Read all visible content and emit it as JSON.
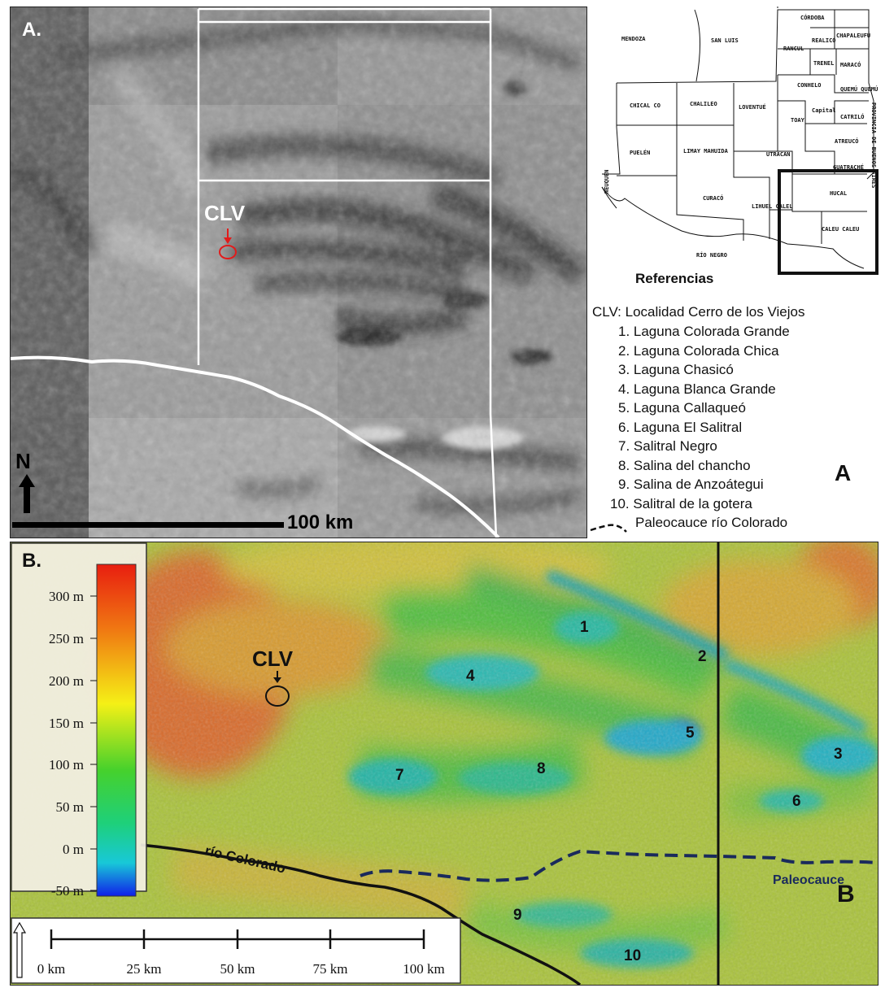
{
  "panel_a": {
    "label": "A.",
    "site_label": "CLV",
    "north_label": "N",
    "scale_label": "100 km"
  },
  "reference_map": {
    "departments": [
      "CÓRDOBA",
      "MENDOZA",
      "SAN LUIS",
      "REALICÓ",
      "CHAPALEUFÚ",
      "RANCUL",
      "TRENEL",
      "MARACÓ",
      "CONHELO",
      "QUEMÚ QUEMÚ",
      "CHICAL CO",
      "CHALILEO",
      "LOVENTUÉ",
      "TOAY",
      "Capital",
      "CATRILÓ",
      "PROVINCIA DE BUENOS AIRES",
      "PUELÉN",
      "LIMAY MAHUIDA",
      "UTRACÁN",
      "ATREUCÓ",
      "GUATRACHÉ",
      "NEUQUÉN",
      "CURACÓ",
      "LIHUEL CALEL",
      "HUCAL",
      "CALEU CALEU",
      "RÍO NEGRO"
    ],
    "legend_title": "Referencias",
    "clv_line": "CLV: Localidad Cerro de los Viejos",
    "lakes": [
      "1. Laguna Colorada Grande",
      "2. Laguna Colorada Chica",
      "3. Laguna Chasicó",
      "4. Laguna Blanca Grande",
      "5. Laguna Callaqueó",
      "6. Laguna El Salitral",
      "7. Salitral Negro",
      "8. Salina del chancho",
      "9. Salina de Anzoátegui",
      "10. Salitral de la gotera"
    ],
    "paleo_line": "Paleocauce río Colorado",
    "corner_label": "A"
  },
  "panel_b": {
    "label": "B.",
    "site_label": "CLV",
    "colorbar_ticks": [
      "300 m",
      "250 m",
      "200 m",
      "150 m",
      "100 m",
      "50 m",
      "0 m",
      "-50 m"
    ],
    "lake_numbers": [
      "1",
      "2",
      "3",
      "4",
      "5",
      "6",
      "7",
      "8",
      "9",
      "10"
    ],
    "river_label": "río Colorado",
    "paleo_label": "Paleocauce",
    "corner_label": "B",
    "scale_ticks": [
      "0 km",
      "25 km",
      "50 km",
      "75 km",
      "100 km"
    ]
  }
}
